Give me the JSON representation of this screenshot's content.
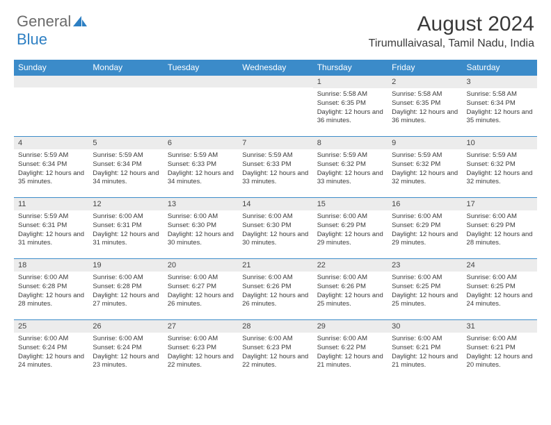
{
  "logo": {
    "word1": "General",
    "word2": "Blue"
  },
  "title": "August 2024",
  "location": "Tirumullaivasal, Tamil Nadu, India",
  "colors": {
    "header_bg": "#3b8bc9",
    "header_text": "#ffffff",
    "band_bg": "#ececec",
    "border": "#3b8bc9",
    "text": "#3a3a3a",
    "logo_gray": "#6b6b6b",
    "logo_blue": "#2d7fc3"
  },
  "day_names": [
    "Sunday",
    "Monday",
    "Tuesday",
    "Wednesday",
    "Thursday",
    "Friday",
    "Saturday"
  ],
  "weeks": [
    [
      {
        "n": "",
        "lines": []
      },
      {
        "n": "",
        "lines": []
      },
      {
        "n": "",
        "lines": []
      },
      {
        "n": "",
        "lines": []
      },
      {
        "n": "1",
        "lines": [
          "Sunrise: 5:58 AM",
          "Sunset: 6:35 PM",
          "Daylight: 12 hours and 36 minutes."
        ]
      },
      {
        "n": "2",
        "lines": [
          "Sunrise: 5:58 AM",
          "Sunset: 6:35 PM",
          "Daylight: 12 hours and 36 minutes."
        ]
      },
      {
        "n": "3",
        "lines": [
          "Sunrise: 5:58 AM",
          "Sunset: 6:34 PM",
          "Daylight: 12 hours and 35 minutes."
        ]
      }
    ],
    [
      {
        "n": "4",
        "lines": [
          "Sunrise: 5:59 AM",
          "Sunset: 6:34 PM",
          "Daylight: 12 hours and 35 minutes."
        ]
      },
      {
        "n": "5",
        "lines": [
          "Sunrise: 5:59 AM",
          "Sunset: 6:34 PM",
          "Daylight: 12 hours and 34 minutes."
        ]
      },
      {
        "n": "6",
        "lines": [
          "Sunrise: 5:59 AM",
          "Sunset: 6:33 PM",
          "Daylight: 12 hours and 34 minutes."
        ]
      },
      {
        "n": "7",
        "lines": [
          "Sunrise: 5:59 AM",
          "Sunset: 6:33 PM",
          "Daylight: 12 hours and 33 minutes."
        ]
      },
      {
        "n": "8",
        "lines": [
          "Sunrise: 5:59 AM",
          "Sunset: 6:32 PM",
          "Daylight: 12 hours and 33 minutes."
        ]
      },
      {
        "n": "9",
        "lines": [
          "Sunrise: 5:59 AM",
          "Sunset: 6:32 PM",
          "Daylight: 12 hours and 32 minutes."
        ]
      },
      {
        "n": "10",
        "lines": [
          "Sunrise: 5:59 AM",
          "Sunset: 6:32 PM",
          "Daylight: 12 hours and 32 minutes."
        ]
      }
    ],
    [
      {
        "n": "11",
        "lines": [
          "Sunrise: 5:59 AM",
          "Sunset: 6:31 PM",
          "Daylight: 12 hours and 31 minutes."
        ]
      },
      {
        "n": "12",
        "lines": [
          "Sunrise: 6:00 AM",
          "Sunset: 6:31 PM",
          "Daylight: 12 hours and 31 minutes."
        ]
      },
      {
        "n": "13",
        "lines": [
          "Sunrise: 6:00 AM",
          "Sunset: 6:30 PM",
          "Daylight: 12 hours and 30 minutes."
        ]
      },
      {
        "n": "14",
        "lines": [
          "Sunrise: 6:00 AM",
          "Sunset: 6:30 PM",
          "Daylight: 12 hours and 30 minutes."
        ]
      },
      {
        "n": "15",
        "lines": [
          "Sunrise: 6:00 AM",
          "Sunset: 6:29 PM",
          "Daylight: 12 hours and 29 minutes."
        ]
      },
      {
        "n": "16",
        "lines": [
          "Sunrise: 6:00 AM",
          "Sunset: 6:29 PM",
          "Daylight: 12 hours and 29 minutes."
        ]
      },
      {
        "n": "17",
        "lines": [
          "Sunrise: 6:00 AM",
          "Sunset: 6:29 PM",
          "Daylight: 12 hours and 28 minutes."
        ]
      }
    ],
    [
      {
        "n": "18",
        "lines": [
          "Sunrise: 6:00 AM",
          "Sunset: 6:28 PM",
          "Daylight: 12 hours and 28 minutes."
        ]
      },
      {
        "n": "19",
        "lines": [
          "Sunrise: 6:00 AM",
          "Sunset: 6:28 PM",
          "Daylight: 12 hours and 27 minutes."
        ]
      },
      {
        "n": "20",
        "lines": [
          "Sunrise: 6:00 AM",
          "Sunset: 6:27 PM",
          "Daylight: 12 hours and 26 minutes."
        ]
      },
      {
        "n": "21",
        "lines": [
          "Sunrise: 6:00 AM",
          "Sunset: 6:26 PM",
          "Daylight: 12 hours and 26 minutes."
        ]
      },
      {
        "n": "22",
        "lines": [
          "Sunrise: 6:00 AM",
          "Sunset: 6:26 PM",
          "Daylight: 12 hours and 25 minutes."
        ]
      },
      {
        "n": "23",
        "lines": [
          "Sunrise: 6:00 AM",
          "Sunset: 6:25 PM",
          "Daylight: 12 hours and 25 minutes."
        ]
      },
      {
        "n": "24",
        "lines": [
          "Sunrise: 6:00 AM",
          "Sunset: 6:25 PM",
          "Daylight: 12 hours and 24 minutes."
        ]
      }
    ],
    [
      {
        "n": "25",
        "lines": [
          "Sunrise: 6:00 AM",
          "Sunset: 6:24 PM",
          "Daylight: 12 hours and 24 minutes."
        ]
      },
      {
        "n": "26",
        "lines": [
          "Sunrise: 6:00 AM",
          "Sunset: 6:24 PM",
          "Daylight: 12 hours and 23 minutes."
        ]
      },
      {
        "n": "27",
        "lines": [
          "Sunrise: 6:00 AM",
          "Sunset: 6:23 PM",
          "Daylight: 12 hours and 22 minutes."
        ]
      },
      {
        "n": "28",
        "lines": [
          "Sunrise: 6:00 AM",
          "Sunset: 6:23 PM",
          "Daylight: 12 hours and 22 minutes."
        ]
      },
      {
        "n": "29",
        "lines": [
          "Sunrise: 6:00 AM",
          "Sunset: 6:22 PM",
          "Daylight: 12 hours and 21 minutes."
        ]
      },
      {
        "n": "30",
        "lines": [
          "Sunrise: 6:00 AM",
          "Sunset: 6:21 PM",
          "Daylight: 12 hours and 21 minutes."
        ]
      },
      {
        "n": "31",
        "lines": [
          "Sunrise: 6:00 AM",
          "Sunset: 6:21 PM",
          "Daylight: 12 hours and 20 minutes."
        ]
      }
    ]
  ]
}
